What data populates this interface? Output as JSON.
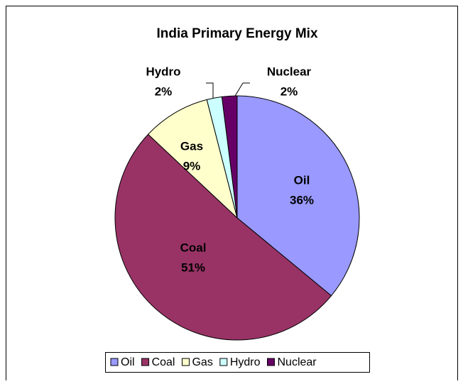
{
  "chart_data": {
    "type": "pie",
    "title": "India Primary Energy Mix",
    "categories": [
      "Oil",
      "Coal",
      "Gas",
      "Hydro",
      "Nuclear"
    ],
    "values": [
      36,
      51,
      9,
      2,
      2
    ],
    "value_labels": [
      "36%",
      "51%",
      "9%",
      "2%",
      "2%"
    ],
    "colors": [
      "#9999ff",
      "#993366",
      "#ffffcc",
      "#ccffff",
      "#660066"
    ],
    "legend": "bottom"
  }
}
